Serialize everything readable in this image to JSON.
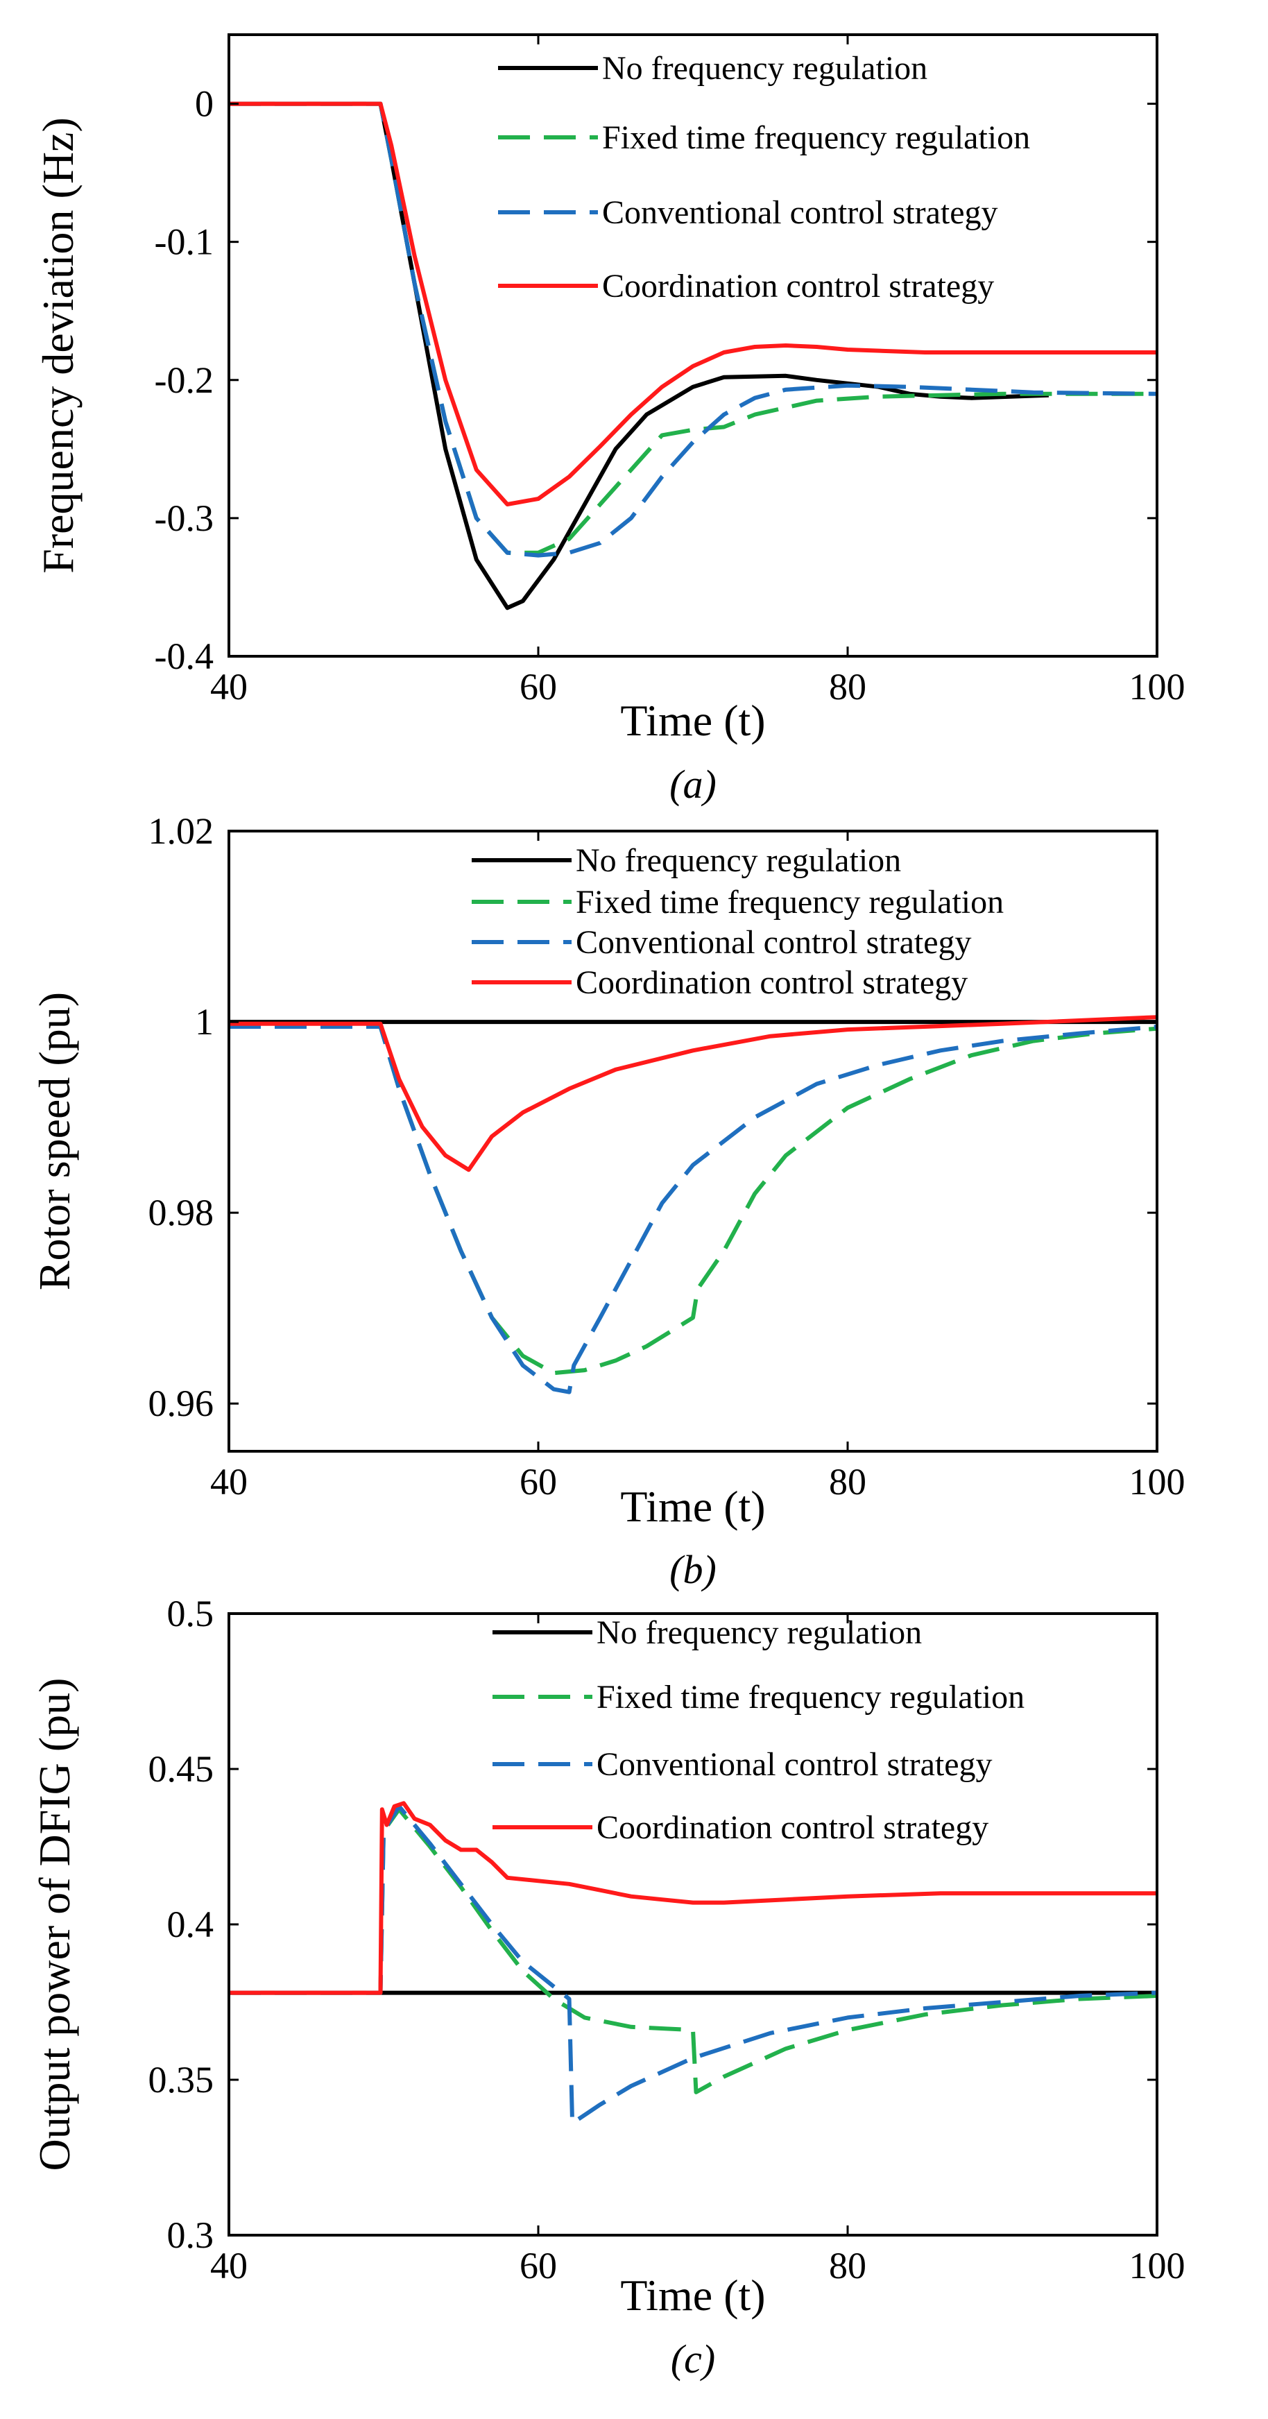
{
  "colors": {
    "no_regulation": "#000000",
    "fixed_time": "#22b14c",
    "conventional": "#1f6fbf",
    "coordination": "#ff1a1a"
  },
  "chart_data": [
    {
      "type": "line",
      "panel_label": "(a)",
      "xlabel": "Time (t)",
      "ylabel": "Frequency deviation (Hz)",
      "xlim": [
        40,
        100
      ],
      "ylim": [
        -0.4,
        0.05
      ],
      "xticks": [
        40,
        60,
        80,
        100
      ],
      "yticks": [
        0,
        -0.1,
        -0.2,
        -0.3,
        -0.4
      ],
      "xtick_labels": [
        "40",
        "60",
        "80",
        "100"
      ],
      "ytick_labels": [
        "0",
        "-0.1",
        "-0.2",
        "-0.3",
        "-0.4"
      ],
      "grid": false,
      "legend_position": "top-right",
      "series": [
        {
          "name": "No frequency regulation",
          "style": "solid",
          "color_key": "no_regulation",
          "points": [
            [
              40,
              0
            ],
            [
              49.8,
              0
            ],
            [
              50.5,
              -0.04
            ],
            [
              52,
              -0.13
            ],
            [
              54,
              -0.25
            ],
            [
              56,
              -0.33
            ],
            [
              58,
              -0.365
            ],
            [
              59,
              -0.36
            ],
            [
              61,
              -0.33
            ],
            [
              63,
              -0.29
            ],
            [
              65,
              -0.25
            ],
            [
              67,
              -0.225
            ],
            [
              70,
              -0.205
            ],
            [
              72,
              -0.198
            ],
            [
              76,
              -0.197
            ],
            [
              78,
              -0.2
            ],
            [
              82,
              -0.205
            ],
            [
              84,
              -0.21
            ],
            [
              86,
              -0.212
            ],
            [
              88,
              -0.213
            ],
            [
              93,
              -0.211
            ]
          ]
        },
        {
          "name": "Fixed time frequency regulation",
          "style": "dashed",
          "color_key": "fixed_time",
          "points": [
            [
              40,
              0
            ],
            [
              49.8,
              0
            ],
            [
              50.5,
              -0.04
            ],
            [
              52,
              -0.13
            ],
            [
              54,
              -0.23
            ],
            [
              56,
              -0.3
            ],
            [
              58,
              -0.325
            ],
            [
              60,
              -0.325
            ],
            [
              62,
              -0.315
            ],
            [
              64,
              -0.29
            ],
            [
              66,
              -0.265
            ],
            [
              68,
              -0.24
            ],
            [
              70,
              -0.236
            ],
            [
              72,
              -0.234
            ],
            [
              74,
              -0.225
            ],
            [
              76,
              -0.22
            ],
            [
              78,
              -0.215
            ],
            [
              82,
              -0.212
            ],
            [
              86,
              -0.211
            ],
            [
              90,
              -0.21
            ],
            [
              100,
              -0.21
            ]
          ]
        },
        {
          "name": "Conventional control strategy",
          "style": "dashed",
          "color_key": "conventional",
          "points": [
            [
              40,
              0
            ],
            [
              49.8,
              0
            ],
            [
              50.5,
              -0.04
            ],
            [
              52,
              -0.13
            ],
            [
              54,
              -0.23
            ],
            [
              56,
              -0.3
            ],
            [
              58,
              -0.325
            ],
            [
              60,
              -0.327
            ],
            [
              62,
              -0.325
            ],
            [
              64,
              -0.318
            ],
            [
              66,
              -0.3
            ],
            [
              68,
              -0.27
            ],
            [
              70,
              -0.245
            ],
            [
              72,
              -0.225
            ],
            [
              74,
              -0.213
            ],
            [
              76,
              -0.207
            ],
            [
              80,
              -0.204
            ],
            [
              84,
              -0.205
            ],
            [
              88,
              -0.207
            ],
            [
              92,
              -0.209
            ],
            [
              100,
              -0.21
            ]
          ]
        },
        {
          "name": "Coordination control strategy",
          "style": "solid",
          "color_key": "coordination",
          "points": [
            [
              40,
              0
            ],
            [
              49.8,
              0
            ],
            [
              50.5,
              -0.03
            ],
            [
              52,
              -0.11
            ],
            [
              54,
              -0.2
            ],
            [
              56,
              -0.265
            ],
            [
              58,
              -0.29
            ],
            [
              60,
              -0.286
            ],
            [
              62,
              -0.27
            ],
            [
              64,
              -0.248
            ],
            [
              66,
              -0.225
            ],
            [
              68,
              -0.205
            ],
            [
              70,
              -0.19
            ],
            [
              72,
              -0.18
            ],
            [
              74,
              -0.176
            ],
            [
              76,
              -0.175
            ],
            [
              78,
              -0.176
            ],
            [
              80,
              -0.178
            ],
            [
              85,
              -0.18
            ],
            [
              90,
              -0.18
            ],
            [
              100,
              -0.18
            ]
          ]
        }
      ]
    },
    {
      "type": "line",
      "panel_label": "(b)",
      "xlabel": "Time (t)",
      "ylabel": "Rotor speed (pu)",
      "xlim": [
        40,
        100
      ],
      "ylim": [
        0.955,
        1.02
      ],
      "xticks": [
        40,
        60,
        80,
        100
      ],
      "yticks": [
        1.02,
        1,
        0.98,
        0.96
      ],
      "xtick_labels": [
        "40",
        "60",
        "80",
        "100"
      ],
      "ytick_labels": [
        "1.02",
        "1",
        "0.98",
        "0.96"
      ],
      "grid": false,
      "legend_position": "top-right",
      "series": [
        {
          "name": "No frequency regulation",
          "style": "solid",
          "color_key": "no_regulation",
          "points": [
            [
              40,
              1.0
            ],
            [
              100,
              1.0
            ]
          ]
        },
        {
          "name": "Fixed time frequency regulation",
          "style": "dashed",
          "color_key": "fixed_time",
          "points": [
            [
              40,
              0.9995
            ],
            [
              49.8,
              0.9995
            ],
            [
              51,
              0.993
            ],
            [
              53,
              0.984
            ],
            [
              55,
              0.976
            ],
            [
              57,
              0.969
            ],
            [
              59,
              0.965
            ],
            [
              61,
              0.9632
            ],
            [
              63,
              0.9635
            ],
            [
              65,
              0.9645
            ],
            [
              67,
              0.966
            ],
            [
              69,
              0.968
            ],
            [
              70,
              0.969
            ],
            [
              70.3,
              0.972
            ],
            [
              72,
              0.976
            ],
            [
              74,
              0.982
            ],
            [
              76,
              0.986
            ],
            [
              80,
              0.991
            ],
            [
              84,
              0.994
            ],
            [
              88,
              0.9965
            ],
            [
              92,
              0.998
            ],
            [
              96,
              0.9988
            ],
            [
              100,
              0.9993
            ]
          ]
        },
        {
          "name": "Conventional control strategy",
          "style": "dashed",
          "color_key": "conventional",
          "points": [
            [
              40,
              0.9995
            ],
            [
              49.8,
              0.9995
            ],
            [
              51,
              0.993
            ],
            [
              53,
              0.984
            ],
            [
              55,
              0.976
            ],
            [
              57,
              0.969
            ],
            [
              59,
              0.964
            ],
            [
              61,
              0.9615
            ],
            [
              62,
              0.9612
            ],
            [
              62.3,
              0.964
            ],
            [
              64,
              0.969
            ],
            [
              66,
              0.975
            ],
            [
              68,
              0.981
            ],
            [
              70,
              0.985
            ],
            [
              74,
              0.99
            ],
            [
              78,
              0.9935
            ],
            [
              82,
              0.9955
            ],
            [
              86,
              0.997
            ],
            [
              90,
              0.998
            ],
            [
              95,
              0.9988
            ],
            [
              100,
              0.9995
            ]
          ]
        },
        {
          "name": "Coordination control strategy",
          "style": "solid",
          "color_key": "coordination",
          "points": [
            [
              40,
              0.9998
            ],
            [
              49.8,
              0.9998
            ],
            [
              51,
              0.994
            ],
            [
              52.5,
              0.989
            ],
            [
              54,
              0.986
            ],
            [
              55.5,
              0.9845
            ],
            [
              57,
              0.988
            ],
            [
              59,
              0.9905
            ],
            [
              62,
              0.993
            ],
            [
              65,
              0.995
            ],
            [
              70,
              0.997
            ],
            [
              75,
              0.9985
            ],
            [
              80,
              0.9992
            ],
            [
              90,
              0.9998
            ],
            [
              100,
              1.0005
            ]
          ]
        }
      ]
    },
    {
      "type": "line",
      "panel_label": "(c)",
      "xlabel": "Time (t)",
      "ylabel": "Output power of DFIG (pu)",
      "xlim": [
        40,
        100
      ],
      "ylim": [
        0.3,
        0.5
      ],
      "xticks": [
        40,
        60,
        80,
        100
      ],
      "yticks": [
        0.5,
        0.45,
        0.4,
        0.35,
        0.3
      ],
      "xtick_labels": [
        "40",
        "60",
        "80",
        "100"
      ],
      "ytick_labels": [
        "0.5",
        "0.45",
        "0.4",
        "0.35",
        "0.3"
      ],
      "grid": false,
      "legend_position": "top-right",
      "series": [
        {
          "name": "No frequency regulation",
          "style": "solid",
          "color_key": "no_regulation",
          "points": [
            [
              40,
              0.378
            ],
            [
              100,
              0.378
            ]
          ]
        },
        {
          "name": "Fixed time frequency regulation",
          "style": "dashed",
          "color_key": "fixed_time",
          "points": [
            [
              40,
              0.378
            ],
            [
              49.8,
              0.378
            ],
            [
              50,
              0.43
            ],
            [
              51,
              0.437
            ],
            [
              53,
              0.425
            ],
            [
              55,
              0.412
            ],
            [
              57,
              0.398
            ],
            [
              59,
              0.385
            ],
            [
              61,
              0.376
            ],
            [
              63,
              0.37
            ],
            [
              66,
              0.367
            ],
            [
              70,
              0.366
            ],
            [
              70.2,
              0.346
            ],
            [
              72,
              0.351
            ],
            [
              76,
              0.36
            ],
            [
              80,
              0.366
            ],
            [
              85,
              0.371
            ],
            [
              90,
              0.374
            ],
            [
              95,
              0.376
            ],
            [
              100,
              0.377
            ]
          ]
        },
        {
          "name": "Conventional control strategy",
          "style": "dashed",
          "color_key": "conventional",
          "points": [
            [
              40,
              0.378
            ],
            [
              49.8,
              0.378
            ],
            [
              50,
              0.43
            ],
            [
              51,
              0.438
            ],
            [
              53,
              0.426
            ],
            [
              55,
              0.413
            ],
            [
              57,
              0.4
            ],
            [
              59,
              0.388
            ],
            [
              61,
              0.38
            ],
            [
              62,
              0.376
            ],
            [
              62.2,
              0.336
            ],
            [
              64,
              0.342
            ],
            [
              66,
              0.348
            ],
            [
              70,
              0.357
            ],
            [
              75,
              0.365
            ],
            [
              80,
              0.37
            ],
            [
              85,
              0.373
            ],
            [
              90,
              0.375
            ],
            [
              95,
              0.377
            ],
            [
              100,
              0.378
            ]
          ]
        },
        {
          "name": "Coordination control strategy",
          "style": "solid",
          "color_key": "coordination",
          "points": [
            [
              40,
              0.378
            ],
            [
              49.8,
              0.378
            ],
            [
              49.9,
              0.437
            ],
            [
              50.2,
              0.432
            ],
            [
              50.7,
              0.438
            ],
            [
              51.3,
              0.439
            ],
            [
              52,
              0.434
            ],
            [
              53,
              0.432
            ],
            [
              54,
              0.427
            ],
            [
              55,
              0.424
            ],
            [
              56,
              0.424
            ],
            [
              57,
              0.42
            ],
            [
              58,
              0.415
            ],
            [
              60,
              0.414
            ],
            [
              62,
              0.413
            ],
            [
              64,
              0.411
            ],
            [
              66,
              0.409
            ],
            [
              68,
              0.408
            ],
            [
              70,
              0.407
            ],
            [
              72,
              0.407
            ],
            [
              76,
              0.408
            ],
            [
              80,
              0.409
            ],
            [
              86,
              0.41
            ],
            [
              100,
              0.41
            ]
          ]
        }
      ]
    }
  ]
}
